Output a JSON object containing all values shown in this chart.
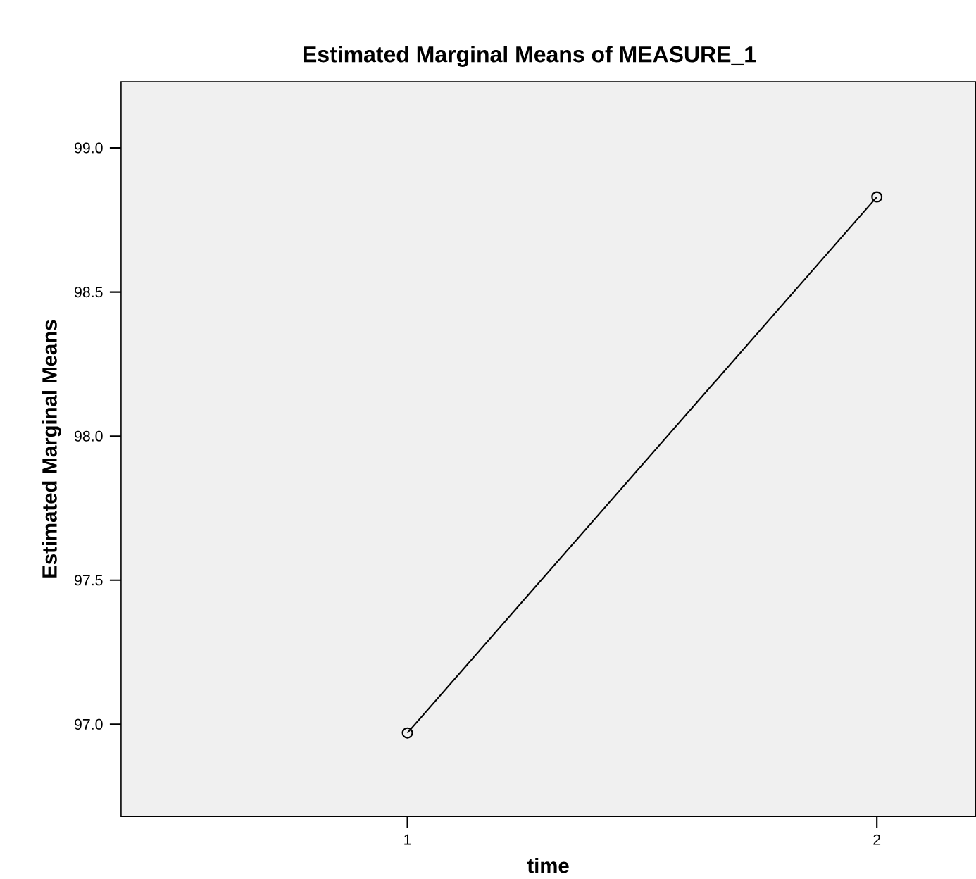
{
  "chart_data": {
    "type": "line",
    "title": "Estimated Marginal Means of MEASURE_1",
    "xlabel": "time",
    "ylabel": "Estimated Marginal Means",
    "categories": [
      "1",
      "2"
    ],
    "series": [
      {
        "color": "#000000",
        "values": [
          96.97,
          98.83
        ]
      }
    ],
    "ylim": [
      96.68,
      99.23
    ],
    "yticks": [
      {
        "value": 97,
        "label": "97.0"
      },
      {
        "value": 97.5,
        "label": "97.5"
      },
      {
        "value": 98,
        "label": "98.0"
      },
      {
        "value": 98.5,
        "label": "98.5"
      },
      {
        "value": 99,
        "label": "99.0"
      }
    ],
    "marker": "circle",
    "line_style": "solid",
    "grid": false
  }
}
